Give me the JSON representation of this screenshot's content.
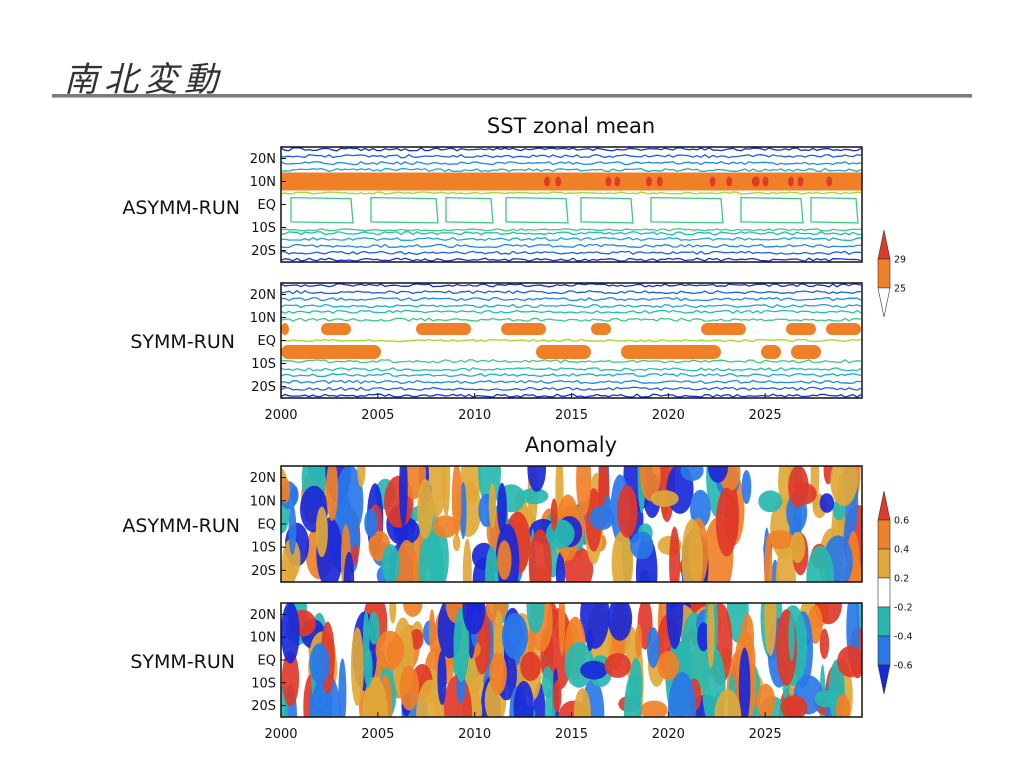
{
  "slide": {
    "title": "南北変動"
  },
  "chart_data": [
    {
      "type": "heatmap",
      "section": "SST zonal mean",
      "title": "SST zonal mean",
      "panels": [
        {
          "label": "ASYMM-RUN",
          "pattern": "single warm band near 10N with closed contours south of the equator"
        },
        {
          "label": "SYMM-RUN",
          "pattern": "warm patches on both sides of the equator near 5N and 5S"
        }
      ],
      "y_ticks": [
        "20N",
        "10N",
        "EQ",
        "10S",
        "20S"
      ],
      "x_ticks": [
        "2000",
        "2005",
        "2010",
        "2015",
        "2020",
        "2025"
      ],
      "xlim": [
        2000,
        2030
      ],
      "ylim": [
        -25,
        25
      ],
      "colorbar": {
        "levels": [
          "29",
          "25"
        ],
        "colors": [
          "#e03a2a",
          "#f08028",
          "#ffffff"
        ]
      }
    },
    {
      "type": "heatmap",
      "section": "Anomaly",
      "title": "Anomaly",
      "panels": [
        {
          "label": "ASYMM-RUN"
        },
        {
          "label": "SYMM-RUN"
        }
      ],
      "y_ticks": [
        "20N",
        "10N",
        "EQ",
        "10S",
        "20S"
      ],
      "x_ticks": [
        "2000",
        "2005",
        "2010",
        "2015",
        "2020",
        "2025"
      ],
      "xlim": [
        2000,
        2030
      ],
      "ylim": [
        -25,
        25
      ],
      "colorbar": {
        "levels": [
          "0.6",
          "0.4",
          "0.2",
          "-0.2",
          "-0.4",
          "-0.6"
        ],
        "colors": [
          "#e03a2a",
          "#f08028",
          "#e0a838",
          "#ffffff",
          "#28b8b0",
          "#2a78e8",
          "#1a28d8"
        ]
      }
    }
  ]
}
